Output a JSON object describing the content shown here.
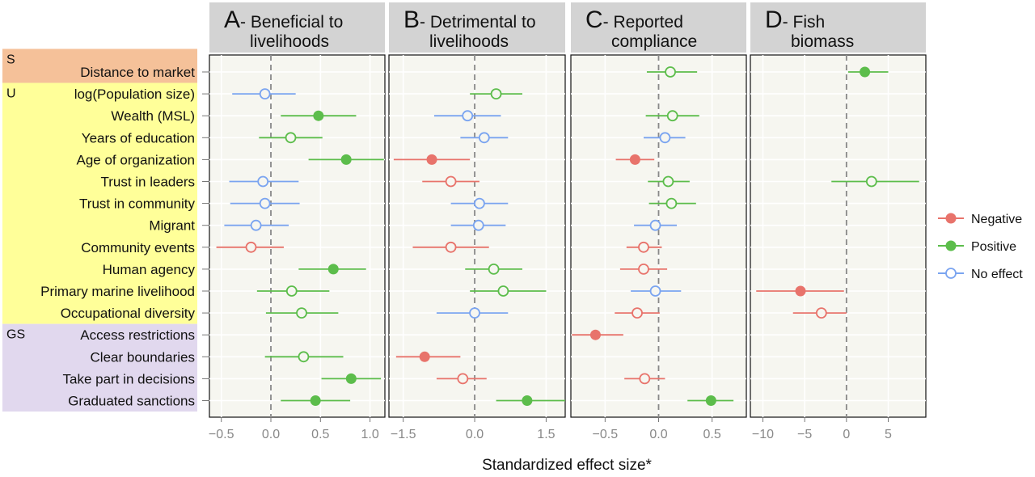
{
  "chart_data": {
    "type": "forest",
    "xlabel": "Standardized effect size*",
    "rows": [
      "Distance to market",
      "log(Population size)",
      "Wealth (MSL)",
      "Years of education",
      "Age of organization",
      "Trust in leaders",
      "Trust in community",
      "Migrant",
      "Community events",
      "Human agency",
      "Primary marine livelihood",
      "Occupational diversity",
      "Access restrictions",
      "Clear boundaries",
      "Take part in decisions",
      "Graduated sanctions"
    ],
    "groups": [
      {
        "label": "S",
        "color": "#f5c199",
        "rows": [
          0,
          0
        ]
      },
      {
        "label": "U",
        "color": "#ffff99",
        "rows": [
          1,
          11
        ]
      },
      {
        "label": "GS",
        "color": "#e1d8ee",
        "rows": [
          12,
          15
        ]
      }
    ],
    "legend": {
      "placement": "right",
      "entries": [
        {
          "label": "Negative",
          "type": "negative"
        },
        {
          "label": "Positive",
          "type": "positive"
        },
        {
          "label": "No effect",
          "type": "none"
        }
      ]
    },
    "colors": {
      "negative": "#e8736b",
      "positive": "#5cbd4b",
      "none": "#7aa4f0",
      "panel_bg": "#f6f6f0",
      "strip_bg": "#d3d3d3"
    },
    "panels": [
      {
        "letter": "A",
        "title_lines": [
          "- Beneficial to",
          "livelihoods"
        ],
        "xlim": [
          -0.62,
          1.15
        ],
        "ticks": [
          -0.5,
          0,
          0.5,
          1.0
        ],
        "tick_labels": [
          "−0.5",
          "0.0",
          "0.5",
          "1.0"
        ],
        "points": [
          null,
          {
            "est": -0.06,
            "lo": -0.39,
            "hi": 0.25,
            "type": "none"
          },
          {
            "est": 0.48,
            "lo": 0.1,
            "hi": 0.86,
            "type": "positive"
          },
          {
            "est": 0.2,
            "lo": -0.12,
            "hi": 0.52,
            "type": "positive_open"
          },
          {
            "est": 0.76,
            "lo": 0.38,
            "hi": 1.14,
            "type": "positive"
          },
          {
            "est": -0.08,
            "lo": -0.42,
            "hi": 0.28,
            "type": "none"
          },
          {
            "est": -0.06,
            "lo": -0.41,
            "hi": 0.29,
            "type": "none"
          },
          {
            "est": -0.15,
            "lo": -0.47,
            "hi": 0.18,
            "type": "none"
          },
          {
            "est": -0.2,
            "lo": -0.55,
            "hi": 0.13,
            "type": "negative_open"
          },
          {
            "est": 0.63,
            "lo": 0.28,
            "hi": 0.96,
            "type": "positive"
          },
          {
            "est": 0.21,
            "lo": -0.14,
            "hi": 0.59,
            "type": "positive_open"
          },
          {
            "est": 0.31,
            "lo": -0.05,
            "hi": 0.68,
            "type": "positive_open"
          },
          null,
          {
            "est": 0.33,
            "lo": -0.06,
            "hi": 0.73,
            "type": "positive_open"
          },
          {
            "est": 0.81,
            "lo": 0.51,
            "hi": 1.11,
            "type": "positive"
          },
          {
            "est": 0.45,
            "lo": 0.1,
            "hi": 0.8,
            "type": "positive"
          }
        ]
      },
      {
        "letter": "B",
        "title_lines": [
          "- Detrimental to",
          "livelihoods"
        ],
        "xlim": [
          -1.8,
          1.9
        ],
        "ticks": [
          -1.5,
          0,
          1.5
        ],
        "tick_labels": [
          "−1.5",
          "0.0",
          "1.5"
        ],
        "points": [
          null,
          {
            "est": 0.45,
            "lo": -0.1,
            "hi": 1.0,
            "type": "positive_open"
          },
          {
            "est": -0.15,
            "lo": -0.85,
            "hi": 0.55,
            "type": "none"
          },
          {
            "est": 0.2,
            "lo": -0.3,
            "hi": 0.7,
            "type": "none"
          },
          {
            "est": -0.9,
            "lo": -1.7,
            "hi": -0.1,
            "type": "negative"
          },
          {
            "est": -0.5,
            "lo": -1.1,
            "hi": 0.1,
            "type": "negative_open"
          },
          {
            "est": 0.1,
            "lo": -0.5,
            "hi": 0.7,
            "type": "none"
          },
          {
            "est": 0.08,
            "lo": -0.5,
            "hi": 0.65,
            "type": "none"
          },
          {
            "est": -0.5,
            "lo": -1.3,
            "hi": 0.3,
            "type": "negative_open"
          },
          {
            "est": 0.4,
            "lo": -0.2,
            "hi": 1.0,
            "type": "positive_open"
          },
          {
            "est": 0.6,
            "lo": -0.1,
            "hi": 1.5,
            "type": "positive_open"
          },
          {
            "est": 0.0,
            "lo": -0.8,
            "hi": 0.7,
            "type": "none"
          },
          null,
          {
            "est": -1.05,
            "lo": -1.65,
            "hi": -0.3,
            "type": "negative"
          },
          {
            "est": -0.25,
            "lo": -0.8,
            "hi": 0.25,
            "type": "negative_open"
          },
          {
            "est": 1.1,
            "lo": 0.45,
            "hi": 1.9,
            "type": "positive"
          }
        ]
      },
      {
        "letter": "C",
        "title_lines": [
          "- Reported",
          "compliance"
        ],
        "xlim": [
          -0.82,
          0.82
        ],
        "ticks": [
          -0.5,
          0,
          0.5
        ],
        "tick_labels": [
          "−0.5",
          "0.0",
          "0.5"
        ],
        "points": [
          {
            "est": 0.11,
            "lo": -0.11,
            "hi": 0.36,
            "type": "positive_open"
          },
          null,
          {
            "est": 0.13,
            "lo": -0.12,
            "hi": 0.38,
            "type": "positive_open"
          },
          {
            "est": 0.06,
            "lo": -0.14,
            "hi": 0.25,
            "type": "none"
          },
          {
            "est": -0.22,
            "lo": -0.4,
            "hi": -0.04,
            "type": "negative"
          },
          {
            "est": 0.09,
            "lo": -0.1,
            "hi": 0.29,
            "type": "positive_open"
          },
          {
            "est": 0.12,
            "lo": -0.09,
            "hi": 0.35,
            "type": "positive_open"
          },
          {
            "est": -0.03,
            "lo": -0.23,
            "hi": 0.17,
            "type": "none"
          },
          {
            "est": -0.14,
            "lo": -0.3,
            "hi": 0.03,
            "type": "negative_open"
          },
          {
            "est": -0.14,
            "lo": -0.36,
            "hi": 0.08,
            "type": "negative_open"
          },
          {
            "est": -0.03,
            "lo": -0.26,
            "hi": 0.21,
            "type": "none"
          },
          {
            "est": -0.2,
            "lo": -0.41,
            "hi": 0.01,
            "type": "negative_open"
          },
          {
            "est": -0.59,
            "lo": -0.81,
            "hi": -0.33,
            "type": "negative"
          },
          null,
          {
            "est": -0.13,
            "lo": -0.32,
            "hi": 0.06,
            "type": "negative_open"
          },
          {
            "est": 0.49,
            "lo": 0.27,
            "hi": 0.7,
            "type": "positive"
          }
        ]
      },
      {
        "letter": "D",
        "title_lines": [
          "- Fish",
          "biomass"
        ],
        "xlim": [
          -11.5,
          9.5
        ],
        "ticks": [
          -10,
          -5,
          0,
          5
        ],
        "tick_labels": [
          "−10",
          "−5",
          "0",
          "5"
        ],
        "points": [
          {
            "est": 2.2,
            "lo": 0.2,
            "hi": 5.0,
            "type": "positive"
          },
          null,
          null,
          null,
          null,
          {
            "est": 3.0,
            "lo": -1.8,
            "hi": 8.7,
            "type": "positive_open"
          },
          null,
          null,
          null,
          null,
          {
            "est": -5.5,
            "lo": -10.8,
            "hi": -0.3,
            "type": "negative"
          },
          {
            "est": -3.0,
            "lo": -6.4,
            "hi": 0.0,
            "type": "negative_open"
          },
          null,
          null,
          null,
          null
        ]
      }
    ]
  }
}
